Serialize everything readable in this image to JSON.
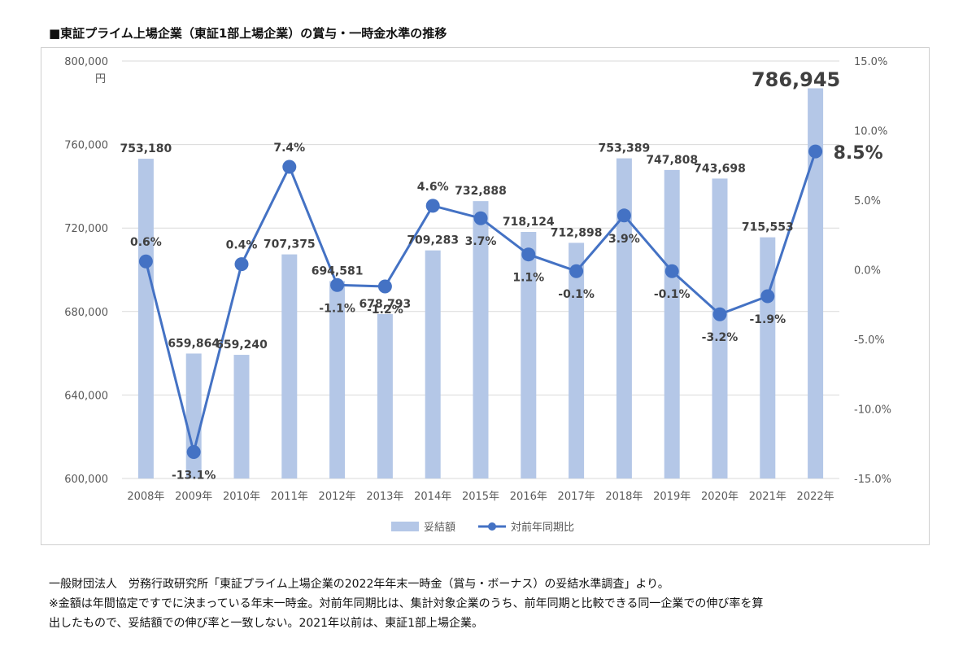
{
  "title": "■東証プライム上場企業（東証1部上場企業）の賞与・一時金水準の推移",
  "notes": [
    "一般財団法人　労務行政研究所「東証プライム上場企業の2022年年末一時金（賞与・ボーナス）の妥結水準調査」より。",
    "※金額は年間協定ですでに決まっている年末一時金。対前年同期比は、集計対象企業のうち、前年同期と比較できる同一企業での伸び率を算",
    "出したもので、妥結額での伸び率と一致しない。2021年以前は、東証1部上場企業。"
  ],
  "colors": {
    "bar": "#b4c7e7",
    "line": "#4472c4",
    "grid": "#d9d9d9",
    "axis_text": "#595959"
  },
  "chart_data": {
    "type": "bar+line",
    "categories": [
      "2008年",
      "2009年",
      "2010年",
      "2011年",
      "2012年",
      "2013年",
      "2014年",
      "2015年",
      "2016年",
      "2017年",
      "2018年",
      "2019年",
      "2020年",
      "2021年",
      "2022年"
    ],
    "series": [
      {
        "name": "妥結額",
        "type": "bar",
        "axis": "left",
        "values": [
          753180,
          659864,
          659240,
          707375,
          694581,
          678793,
          709283,
          732888,
          718124,
          712898,
          753389,
          747808,
          743698,
          715553,
          786945
        ],
        "labels": [
          "753,180",
          "659,864",
          "659,240",
          "707,375",
          "694,581",
          "678,793",
          "709,283",
          "732,888",
          "718,124",
          "712,898",
          "753,389",
          "747,808",
          "743,698",
          "715,553",
          "786,945"
        ]
      },
      {
        "name": "対前年同期比",
        "type": "line",
        "axis": "right",
        "values": [
          0.6,
          -13.1,
          0.4,
          7.4,
          -1.1,
          -1.2,
          4.6,
          3.7,
          1.1,
          -0.1,
          3.9,
          -0.1,
          -3.2,
          -1.9,
          8.5
        ],
        "labels": [
          "0.6%",
          "-13.1%",
          "0.4%",
          "7.4%",
          "-1.1%",
          "-1.2%",
          "4.6%",
          "3.7%",
          "1.1%",
          "-0.1%",
          "3.9%",
          "-0.1%",
          "-3.2%",
          "-1.9%",
          "8.5%"
        ]
      }
    ],
    "y_left": {
      "range": [
        600000,
        800000
      ],
      "ticks": [
        600000,
        640000,
        680000,
        720000,
        760000,
        800000
      ],
      "tick_labels": [
        "600,000",
        "640,000",
        "680,000",
        "720,000",
        "760,000",
        "800,000"
      ],
      "unit": "円"
    },
    "y_right": {
      "range": [
        -15,
        15
      ],
      "ticks": [
        -15,
        -10,
        -5,
        0,
        5,
        10,
        15
      ],
      "tick_labels": [
        "-15.0%",
        "-10.0%",
        "-5.0%",
        "0.0%",
        "5.0%",
        "10.0%",
        "15.0%"
      ]
    },
    "grid": true,
    "legend_position": "bottom"
  }
}
